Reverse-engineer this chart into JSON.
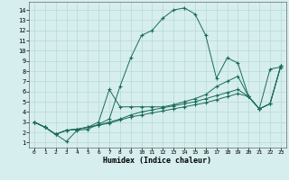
{
  "bg_color": "#d6eeee",
  "grid_color": "#b8d8d8",
  "line_color": "#1a6b5a",
  "xlabel": "Humidex (Indice chaleur)",
  "xlim": [
    -0.5,
    23.5
  ],
  "ylim": [
    0.5,
    14.8
  ],
  "xticks": [
    0,
    1,
    2,
    3,
    4,
    5,
    6,
    7,
    8,
    9,
    10,
    11,
    12,
    13,
    14,
    15,
    16,
    17,
    18,
    19,
    20,
    21,
    22,
    23
  ],
  "yticks": [
    1,
    2,
    3,
    4,
    5,
    6,
    7,
    8,
    9,
    10,
    11,
    12,
    13,
    14
  ],
  "curve1_x": [
    0,
    1,
    2,
    3,
    4,
    5,
    6,
    7,
    8,
    9,
    10,
    11,
    12,
    13,
    14,
    15,
    16,
    17,
    18,
    19,
    20,
    21,
    22,
    23
  ],
  "curve1_y": [
    3.0,
    2.5,
    1.8,
    1.1,
    2.2,
    2.3,
    2.8,
    3.3,
    6.5,
    9.3,
    11.5,
    12.0,
    13.2,
    14.0,
    14.2,
    13.6,
    11.5,
    7.3,
    9.3,
    8.8,
    5.5,
    4.3,
    8.2,
    8.4
  ],
  "curve2_x": [
    0,
    1,
    2,
    3,
    4,
    5,
    6,
    7,
    8,
    9,
    10,
    11,
    12,
    13,
    14,
    15,
    16,
    17,
    18,
    19,
    20,
    21,
    22,
    23
  ],
  "curve2_y": [
    3.0,
    2.5,
    1.8,
    2.2,
    2.3,
    2.5,
    3.0,
    6.2,
    4.5,
    4.5,
    4.5,
    4.5,
    4.5,
    4.7,
    5.0,
    5.3,
    5.7,
    6.5,
    7.0,
    7.5,
    5.5,
    4.3,
    4.8,
    8.5
  ],
  "curve3_x": [
    0,
    1,
    2,
    3,
    4,
    5,
    6,
    7,
    8,
    9,
    10,
    11,
    12,
    13,
    14,
    15,
    16,
    17,
    18,
    19,
    20,
    21,
    22,
    23
  ],
  "curve3_y": [
    3.0,
    2.5,
    1.8,
    2.2,
    2.3,
    2.5,
    2.7,
    3.0,
    3.3,
    3.7,
    4.0,
    4.2,
    4.4,
    4.6,
    4.8,
    5.0,
    5.3,
    5.6,
    5.9,
    6.2,
    5.5,
    4.3,
    4.8,
    8.5
  ],
  "curve4_x": [
    0,
    1,
    2,
    3,
    4,
    5,
    6,
    7,
    8,
    9,
    10,
    11,
    12,
    13,
    14,
    15,
    16,
    17,
    18,
    19,
    20,
    21,
    22,
    23
  ],
  "curve4_y": [
    3.0,
    2.5,
    1.8,
    2.2,
    2.3,
    2.5,
    2.7,
    2.9,
    3.2,
    3.5,
    3.7,
    3.9,
    4.1,
    4.3,
    4.5,
    4.7,
    4.9,
    5.2,
    5.5,
    5.8,
    5.5,
    4.3,
    4.8,
    8.5
  ]
}
